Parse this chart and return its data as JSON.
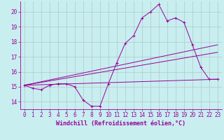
{
  "xlabel": "Windchill (Refroidissement éolien,°C)",
  "background_color": "#c8eef0",
  "grid_color": "#b0c8c8",
  "line_color": "#990099",
  "xmin": -0.5,
  "xmax": 23.5,
  "ymin": 13.5,
  "ymax": 20.7,
  "yticks": [
    14,
    15,
    16,
    17,
    18,
    19,
    20
  ],
  "xticks": [
    0,
    1,
    2,
    3,
    4,
    5,
    6,
    7,
    8,
    9,
    10,
    11,
    12,
    13,
    14,
    15,
    16,
    17,
    18,
    19,
    20,
    21,
    22,
    23
  ],
  "series1_x": [
    0,
    1,
    2,
    3,
    4,
    5,
    6,
    7,
    8,
    9,
    10,
    11,
    12,
    13,
    14,
    15,
    16,
    17,
    18,
    19,
    20,
    21,
    22,
    23
  ],
  "series1_y": [
    15.1,
    14.9,
    14.8,
    15.1,
    15.2,
    15.2,
    15.0,
    14.1,
    13.7,
    13.7,
    15.2,
    16.6,
    17.9,
    18.4,
    19.6,
    20.0,
    20.5,
    19.4,
    19.6,
    19.3,
    17.8,
    16.3,
    15.5,
    15.5
  ],
  "series2_x": [
    0,
    23
  ],
  "series2_y": [
    15.1,
    17.8
  ],
  "series3_x": [
    0,
    23
  ],
  "series3_y": [
    15.1,
    15.5
  ],
  "series4_x": [
    0,
    23
  ],
  "series4_y": [
    15.1,
    17.3
  ]
}
